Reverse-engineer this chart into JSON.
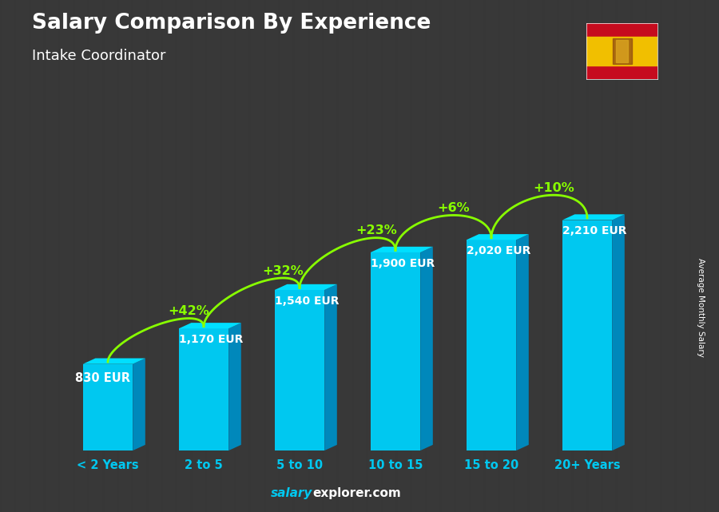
{
  "title": "Salary Comparison By Experience",
  "subtitle": "Intake Coordinator",
  "ylabel": "Average Monthly Salary",
  "footer_salary": "salary",
  "footer_rest": "explorer.com",
  "categories": [
    "< 2 Years",
    "2 to 5",
    "5 to 10",
    "10 to 15",
    "15 to 20",
    "20+ Years"
  ],
  "values": [
    830,
    1170,
    1540,
    1900,
    2020,
    2210
  ],
  "value_labels": [
    "830 EUR",
    "1,170 EUR",
    "1,540 EUR",
    "1,900 EUR",
    "2,020 EUR",
    "2,210 EUR"
  ],
  "pct_changes": [
    "+42%",
    "+32%",
    "+23%",
    "+6%",
    "+10%"
  ],
  "bar_color_face": "#00c8f0",
  "bar_color_side": "#0088bb",
  "bar_color_top": "#00dfff",
  "bg_color": "#3a3a3a",
  "title_color": "#ffffff",
  "subtitle_color": "#ffffff",
  "label_color": "#ffffff",
  "pct_color": "#88ff00",
  "footer_salary_color": "#00c8f0",
  "footer_rest_color": "#ffffff",
  "cat_color": "#00c8f0",
  "ylim": [
    0,
    2700
  ],
  "flag_red": "#c60b1e",
  "flag_yellow": "#f1bf00"
}
